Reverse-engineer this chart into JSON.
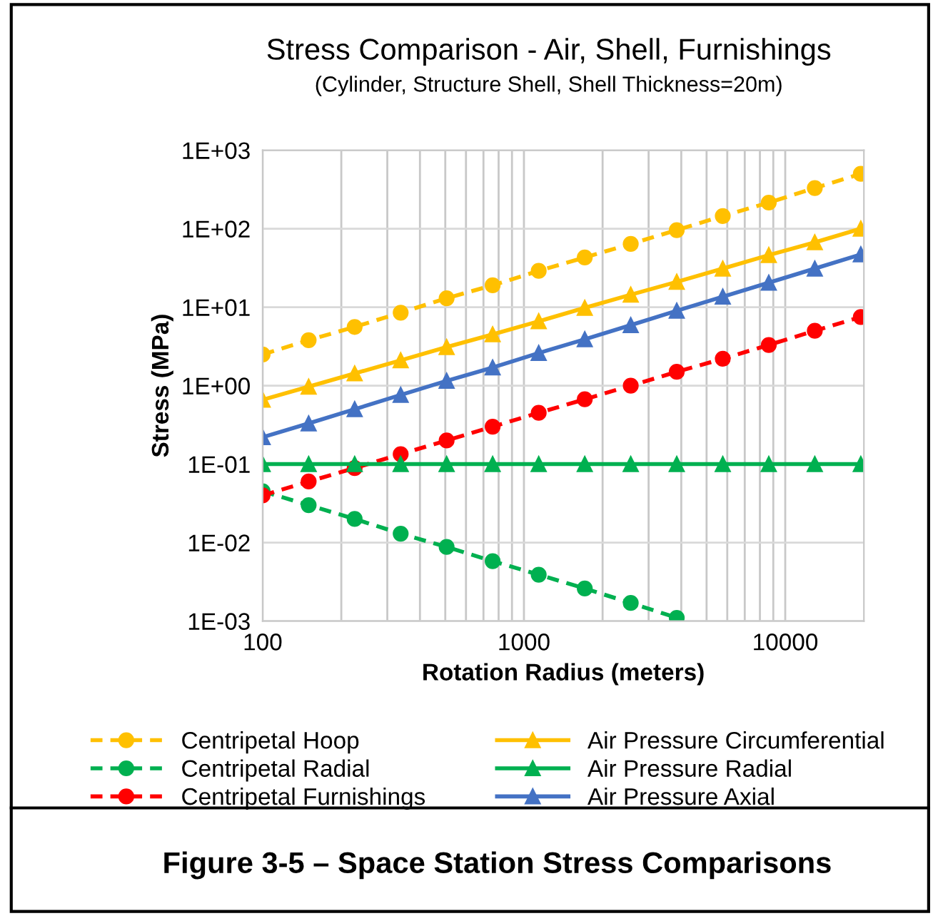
{
  "chart_data": {
    "type": "line",
    "title": "Stress Comparison - Air, Shell, Furnishings",
    "subtitle": "(Cylinder, Structure Shell, Shell Thickness=20m)",
    "xlabel": "Rotation Radius (meters)",
    "ylabel": "Stress (MPa)",
    "annotations": [
      "Figure 3-5 – Space Station Stress Comparisons"
    ],
    "x": [
      100,
      150,
      225,
      337.5,
      506,
      759,
      1139,
      1709,
      2563,
      3844,
      5767,
      8650,
      12975,
      19462
    ],
    "log": "xy",
    "xlim": [
      100,
      20000
    ],
    "xticks": [
      100,
      1000,
      10000
    ],
    "ylim": [
      0.001,
      1000
    ],
    "yticks": [
      {
        "value": 0.001,
        "label": "1E-03"
      },
      {
        "value": 0.01,
        "label": "1E-02"
      },
      {
        "value": 0.1,
        "label": "1E-01"
      },
      {
        "value": 1,
        "label": "1E+00"
      },
      {
        "value": 10,
        "label": "1E+01"
      },
      {
        "value": 100,
        "label": "1E+02"
      },
      {
        "value": 1000,
        "label": "1E+03"
      }
    ],
    "grid": true,
    "legend": "bottom",
    "series": [
      {
        "name": "Centripetal Hoop",
        "color": "#ffc000",
        "marker": "circle",
        "line_style": "dashed",
        "values": [
          2.5,
          3.8,
          5.6,
          8.5,
          13,
          19,
          29,
          43,
          64,
          96,
          145,
          215,
          330,
          500
        ]
      },
      {
        "name": "Centripetal Radial",
        "color": "#00b050",
        "marker": "circle",
        "line_style": "dashed",
        "values": [
          0.045,
          0.03,
          0.02,
          0.013,
          0.0088,
          0.0058,
          0.0039,
          0.0026,
          0.0017,
          0.0011,
          null,
          null,
          null,
          null
        ]
      },
      {
        "name": "Centripetal Furnishings",
        "color": "#ff0000",
        "marker": "circle",
        "line_style": "dashed",
        "values": [
          0.04,
          0.06,
          0.089,
          0.134,
          0.2,
          0.3,
          0.45,
          0.67,
          1.0,
          1.5,
          2.2,
          3.3,
          5.0,
          7.5
        ]
      },
      {
        "name": "Air Pressure Circumferential",
        "color": "#ffc000",
        "marker": "triangle",
        "line_style": "solid",
        "values": [
          0.66,
          0.97,
          1.43,
          2.1,
          3.1,
          4.5,
          6.6,
          9.8,
          14.4,
          21,
          31,
          46,
          67,
          100
        ]
      },
      {
        "name": "Air Pressure Radial",
        "color": "#00b050",
        "marker": "triangle",
        "line_style": "solid",
        "values": [
          0.1,
          0.1,
          0.1,
          0.1,
          0.1,
          0.1,
          0.1,
          0.1,
          0.1,
          0.1,
          0.1,
          0.1,
          0.1,
          0.1
        ]
      },
      {
        "name": "Air Pressure Axial",
        "color": "#4472c4",
        "marker": "triangle",
        "line_style": "solid",
        "values": [
          0.22,
          0.33,
          0.5,
          0.76,
          1.15,
          1.7,
          2.6,
          3.9,
          5.9,
          9,
          13.6,
          20.5,
          31,
          47
        ]
      }
    ]
  }
}
